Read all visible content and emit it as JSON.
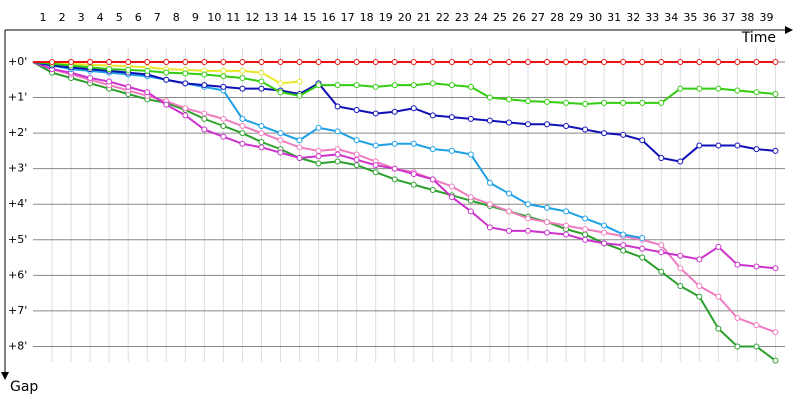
{
  "chart_data": {
    "type": "line",
    "x_label": "Time",
    "y_label": "Gap",
    "x": [
      0,
      1,
      2,
      3,
      4,
      5,
      6,
      7,
      8,
      9,
      10,
      11,
      12,
      13,
      14,
      15,
      16,
      17,
      18,
      19,
      20,
      21,
      22,
      23,
      24,
      25,
      26,
      27,
      28,
      29,
      30,
      31,
      32,
      33,
      34,
      35,
      36,
      37,
      38,
      39
    ],
    "xlim": [
      0,
      39.5
    ],
    "xticks": [
      1,
      2,
      3,
      4,
      5,
      6,
      7,
      8,
      9,
      10,
      11,
      12,
      13,
      14,
      15,
      16,
      17,
      18,
      19,
      20,
      21,
      22,
      23,
      24,
      25,
      26,
      27,
      28,
      29,
      30,
      31,
      32,
      33,
      34,
      35,
      36,
      37,
      38,
      39
    ],
    "ylim": [
      0,
      9
    ],
    "yticks": [
      {
        "value": 0,
        "label": "+0'"
      },
      {
        "value": 1,
        "label": "+1'"
      },
      {
        "value": 2,
        "label": "+2'"
      },
      {
        "value": 3,
        "label": "+3'"
      },
      {
        "value": 4,
        "label": "+4'"
      },
      {
        "value": 5,
        "label": "+5'"
      },
      {
        "value": 6,
        "label": "+6'"
      },
      {
        "value": 7,
        "label": "+7'"
      },
      {
        "value": 8,
        "label": "+8'"
      }
    ],
    "y_inverted": true,
    "grid": true,
    "series": [
      {
        "color": "#e8e82a",
        "values": [
          0,
          0.02,
          0.05,
          0.08,
          0.1,
          0.12,
          0.15,
          0.2,
          0.22,
          0.25,
          0.25,
          0.25,
          0.3,
          0.6,
          0.55,
          null,
          null,
          null,
          null,
          null,
          null,
          null,
          null,
          null,
          null,
          null,
          null,
          null,
          null,
          null,
          null,
          null,
          null,
          null,
          null,
          null,
          null,
          null,
          null,
          null
        ]
      },
      {
        "color": "#2ca02c",
        "values": [
          0,
          0.3,
          0.45,
          0.6,
          0.75,
          0.9,
          1.05,
          1.15,
          1.35,
          1.6,
          1.8,
          2.0,
          2.25,
          2.45,
          2.7,
          2.85,
          2.8,
          2.9,
          3.1,
          3.3,
          3.45,
          3.6,
          3.75,
          3.9,
          4.05,
          4.2,
          4.35,
          4.5,
          4.7,
          4.85,
          5.1,
          5.3,
          5.5,
          5.9,
          6.3,
          6.6,
          7.5,
          8.0,
          8.0,
          8.4
        ]
      },
      {
        "color": "#f07cc0",
        "values": [
          0,
          0.2,
          0.35,
          0.5,
          0.65,
          0.8,
          0.95,
          1.1,
          1.3,
          1.45,
          1.6,
          1.8,
          2.0,
          2.2,
          2.4,
          2.5,
          2.45,
          2.6,
          2.8,
          3.0,
          3.1,
          3.3,
          3.5,
          3.8,
          4.0,
          4.2,
          4.4,
          4.5,
          4.6,
          4.7,
          4.8,
          4.9,
          5.0,
          5.15,
          5.8,
          6.3,
          6.6,
          7.2,
          7.4,
          7.6
        ]
      },
      {
        "color": "#cc33cc",
        "values": [
          0,
          0.2,
          0.3,
          0.45,
          0.55,
          0.7,
          0.85,
          1.2,
          1.5,
          1.9,
          2.1,
          2.3,
          2.4,
          2.55,
          2.7,
          2.65,
          2.6,
          2.75,
          2.9,
          3.0,
          3.15,
          3.3,
          3.8,
          4.2,
          4.65,
          4.75,
          4.75,
          4.8,
          4.85,
          5.0,
          5.1,
          5.15,
          5.25,
          5.35,
          5.45,
          5.55,
          5.2,
          5.7,
          5.75,
          5.8
        ]
      },
      {
        "color": "#1ea0e6",
        "values": [
          0,
          0.1,
          0.2,
          0.25,
          0.3,
          0.35,
          0.4,
          0.5,
          0.6,
          0.7,
          0.8,
          1.6,
          1.8,
          2.0,
          2.2,
          1.85,
          1.95,
          2.2,
          2.35,
          2.3,
          2.3,
          2.45,
          2.5,
          2.6,
          3.4,
          3.7,
          4.0,
          4.1,
          4.2,
          4.4,
          4.6,
          4.85,
          4.95,
          null,
          null,
          null,
          null,
          null,
          null,
          null
        ]
      },
      {
        "color": "#1010b8",
        "values": [
          0,
          0.1,
          0.15,
          0.2,
          0.25,
          0.3,
          0.35,
          0.5,
          0.6,
          0.65,
          0.7,
          0.75,
          0.75,
          0.8,
          0.9,
          0.6,
          1.25,
          1.35,
          1.45,
          1.4,
          1.3,
          1.5,
          1.55,
          1.6,
          1.65,
          1.7,
          1.75,
          1.75,
          1.8,
          1.9,
          2.0,
          2.05,
          2.2,
          2.7,
          2.8,
          2.35,
          2.35,
          2.35,
          2.45,
          2.5
        ]
      },
      {
        "color": "#33cc11",
        "values": [
          0,
          0.05,
          0.1,
          0.15,
          0.2,
          0.22,
          0.25,
          0.3,
          0.32,
          0.35,
          0.4,
          0.45,
          0.55,
          0.85,
          0.95,
          0.65,
          0.65,
          0.65,
          0.7,
          0.65,
          0.65,
          0.6,
          0.65,
          0.7,
          1.0,
          1.05,
          1.1,
          1.12,
          1.15,
          1.18,
          1.15,
          1.15,
          1.15,
          1.15,
          0.75,
          0.75,
          0.75,
          0.8,
          0.85,
          0.9
        ]
      },
      {
        "color": "#ee1111",
        "values": [
          0,
          0,
          0,
          0,
          0,
          0,
          0,
          0,
          0,
          0,
          0,
          0,
          0,
          0,
          0,
          0,
          0,
          0,
          0,
          0,
          0,
          0,
          0,
          0,
          0,
          0,
          0,
          0,
          0,
          0,
          0,
          0,
          0,
          0,
          0,
          0,
          0,
          0,
          0,
          0
        ]
      }
    ]
  }
}
